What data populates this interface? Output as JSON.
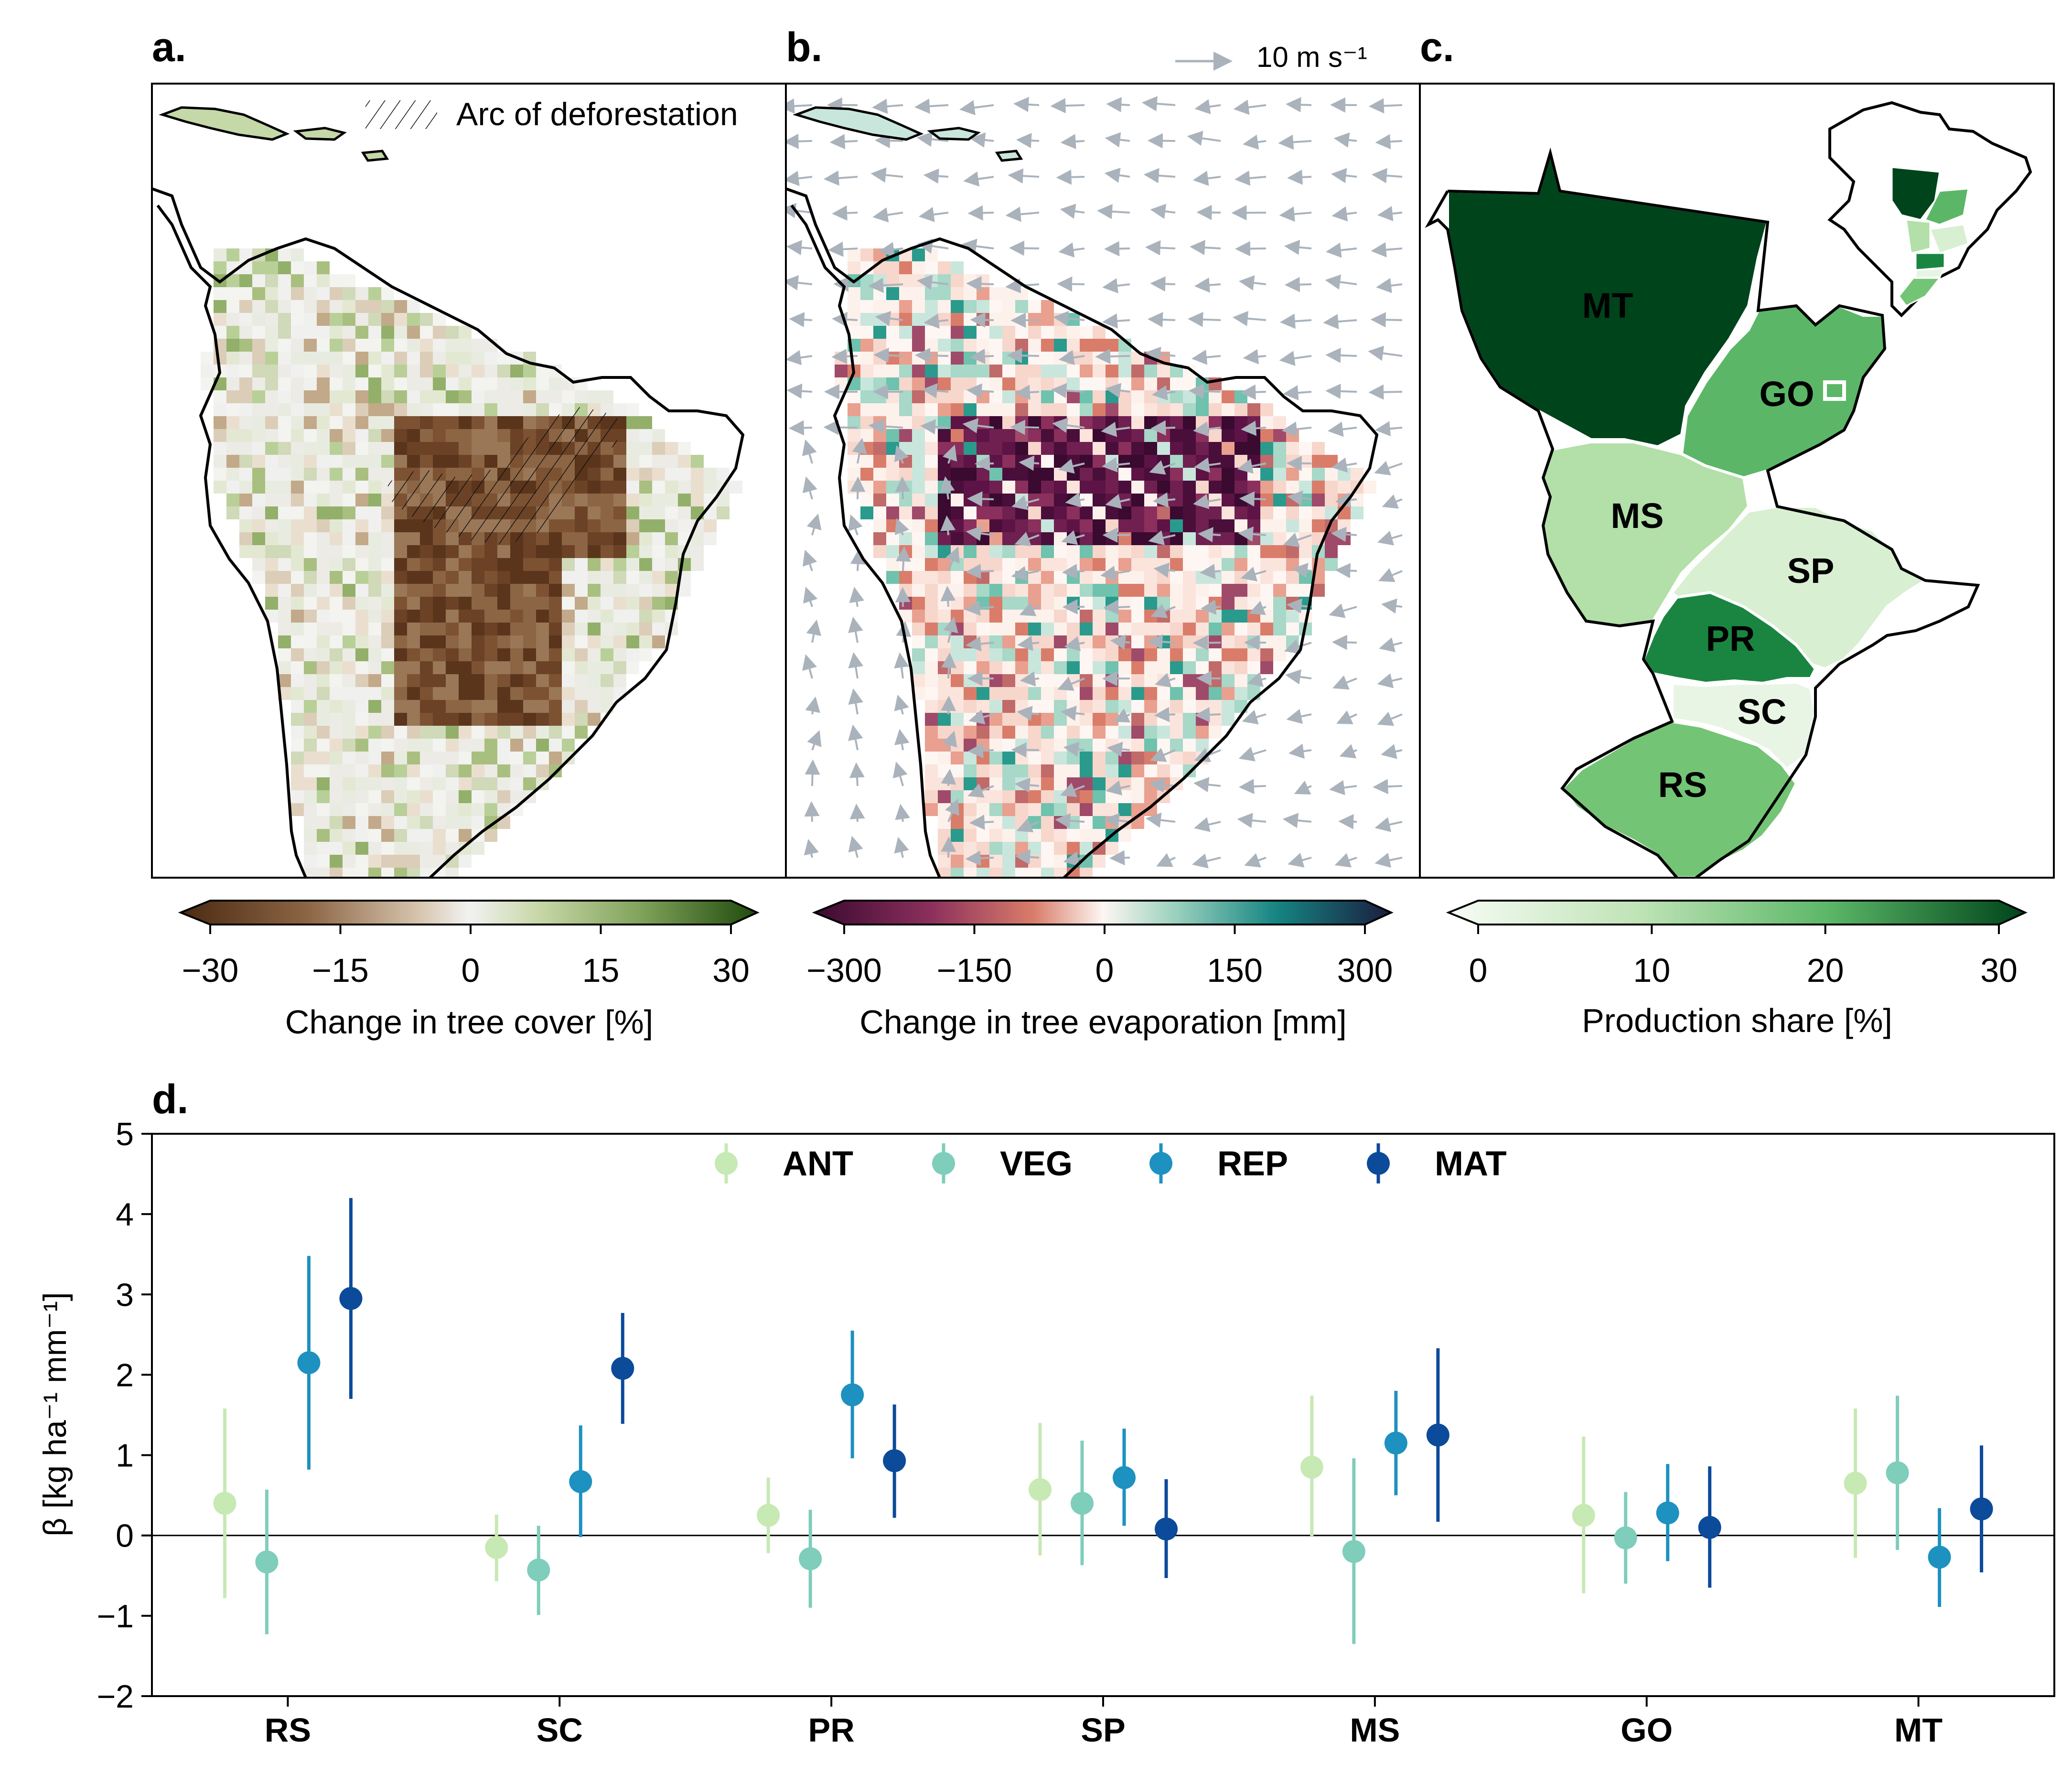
{
  "panels": {
    "a": {
      "letter": "a.",
      "legend_label": "Arc of deforestation",
      "colorbar": {
        "ticks": [
          "−30",
          "−15",
          "0",
          "15",
          "30"
        ],
        "label": "Change in tree cover [%]"
      }
    },
    "b": {
      "letter": "b.",
      "reference_arrow_label": "10 m s⁻¹",
      "colorbar": {
        "ticks": [
          "−300",
          "−150",
          "0",
          "150",
          "300"
        ],
        "label": "Change in tree evaporation [mm]"
      }
    },
    "c": {
      "letter": "c.",
      "colorbar": {
        "ticks": [
          "0",
          "10",
          "20",
          "30"
        ],
        "label": "Production share [%]"
      },
      "states": [
        {
          "code": "MT",
          "share": 30
        },
        {
          "code": "GO",
          "share": 17
        },
        {
          "code": "MS",
          "share": 8
        },
        {
          "code": "SP",
          "share": 4
        },
        {
          "code": "PR",
          "share": 25
        },
        {
          "code": "SC",
          "share": 1
        },
        {
          "code": "RS",
          "share": 14
        }
      ]
    },
    "d": {
      "letter": "d."
    }
  },
  "colors": {
    "ANT": "#c7e9b4",
    "VEG": "#7fcdbb",
    "REP": "#1d91c0",
    "MAT": "#0c4a9a",
    "arrow": "#aab3bc",
    "arc_brown": "#6b4226"
  },
  "chart_data": {
    "type": "scatter",
    "subtype": "point-with-errorbars",
    "title": "",
    "xlabel": "",
    "ylabel": "β [kg ha⁻¹ mm⁻¹]",
    "ylim": [
      -2,
      5
    ],
    "yticks": [
      "5",
      "4",
      "3",
      "2",
      "1",
      "0",
      "−1",
      "−2"
    ],
    "yticks_values": [
      5,
      4,
      3,
      2,
      1,
      0,
      -1,
      -2
    ],
    "categories": [
      "RS",
      "SC",
      "PR",
      "SP",
      "MS",
      "GO",
      "MT"
    ],
    "legend_position": "top-center",
    "zero_line": true,
    "series": [
      {
        "name": "ANT",
        "values": [
          0.4,
          -0.15,
          0.25,
          0.57,
          0.85,
          0.25,
          0.65
        ],
        "lower": [
          -0.78,
          -0.57,
          -0.22,
          -0.25,
          -0.02,
          -0.72,
          -0.28
        ],
        "upper": [
          1.58,
          0.26,
          0.72,
          1.4,
          1.74,
          1.23,
          1.58
        ]
      },
      {
        "name": "VEG",
        "values": [
          -0.33,
          -0.43,
          -0.29,
          0.4,
          -0.2,
          -0.03,
          0.78
        ],
        "lower": [
          -1.23,
          -0.99,
          -0.9,
          -0.37,
          -1.35,
          -0.6,
          -0.18
        ],
        "upper": [
          0.57,
          0.12,
          0.32,
          1.18,
          0.96,
          0.54,
          1.74
        ]
      },
      {
        "name": "REP",
        "values": [
          2.15,
          0.67,
          1.75,
          0.72,
          1.15,
          0.28,
          -0.27
        ],
        "lower": [
          0.82,
          -0.02,
          0.96,
          0.12,
          0.5,
          -0.32,
          -0.89
        ],
        "upper": [
          3.48,
          1.37,
          2.55,
          1.33,
          1.8,
          0.89,
          0.34
        ]
      },
      {
        "name": "MAT",
        "values": [
          2.95,
          2.08,
          0.93,
          0.08,
          1.25,
          0.1,
          0.33
        ],
        "lower": [
          1.7,
          1.39,
          0.22,
          -0.53,
          0.17,
          -0.65,
          -0.46
        ],
        "upper": [
          4.2,
          2.77,
          1.63,
          0.7,
          2.33,
          0.86,
          1.12
        ]
      }
    ]
  }
}
